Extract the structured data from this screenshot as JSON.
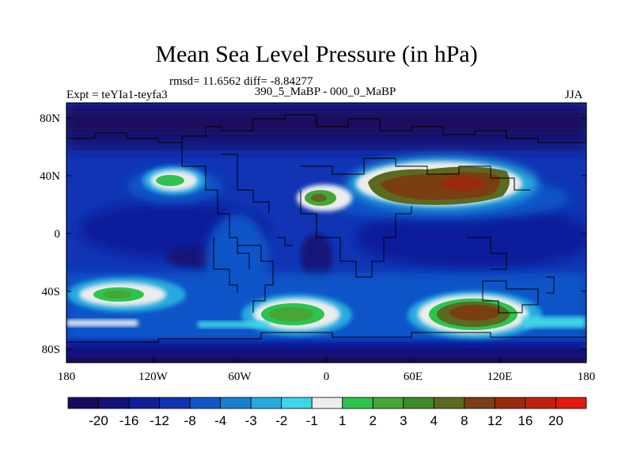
{
  "title": "Mean Sea Level Pressure (in hPa)",
  "stats": "rmsd= 11.6562 diff= -8.84277",
  "subtitle": "390_5_MaBP - 000_0_MaBP",
  "experiment": "Expt = teYIa1-teyfa3",
  "season": "JJA",
  "map": {
    "lat_ticks": [
      "80N",
      "40N",
      "0",
      "40S",
      "80S"
    ],
    "lon_ticks": [
      "180",
      "120W",
      "60W",
      "0",
      "60E",
      "120E",
      "180"
    ]
  },
  "colorbar": {
    "levels": [
      "-20",
      "-16",
      "-12",
      "-8",
      "-4",
      "-3",
      "-2",
      "-1",
      "1",
      "2",
      "3",
      "4",
      "8",
      "12",
      "16",
      "20"
    ],
    "colors": [
      "#1a0a5e",
      "#12127a",
      "#101e9a",
      "#1034b4",
      "#0f55c8",
      "#1880d0",
      "#26aade",
      "#3ed6e6",
      "#ececec",
      "#2cc44e",
      "#46a636",
      "#3f8a2a",
      "#5a6a20",
      "#7a3e12",
      "#9a2a0e",
      "#c02010",
      "#e01a10"
    ]
  }
}
